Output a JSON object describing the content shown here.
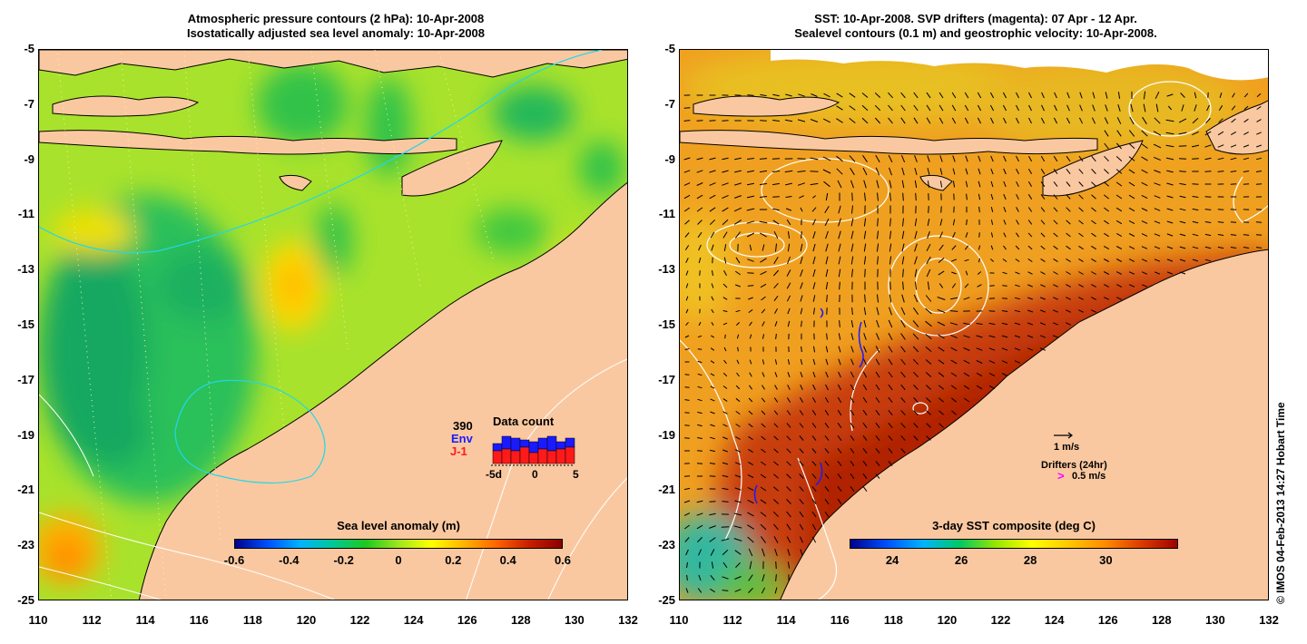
{
  "left_panel": {
    "title_line1": "Atmospheric pressure contours (2 hPa): 10-Apr-2008",
    "title_line2": "Isostatically adjusted sea level anomaly: 10-Apr-2008",
    "y_ticks": [
      "-5",
      "-7",
      "-9",
      "-11",
      "-13",
      "-15",
      "-17",
      "-19",
      "-21",
      "-23",
      "-25"
    ],
    "x_ticks": [
      "110",
      "112",
      "114",
      "116",
      "118",
      "120",
      "122",
      "124",
      "126",
      "128",
      "130",
      "132"
    ],
    "colorbar": {
      "title": "Sea level anomaly (m)",
      "ticks": [
        "-0.6",
        "-0.4",
        "-0.2",
        "0",
        "0.2",
        "0.4",
        "0.6"
      ],
      "range": [
        -0.6,
        0.6
      ]
    },
    "inset": {
      "count": "390",
      "label_env": "Env",
      "label_j1": "J-1",
      "title": "Data count",
      "x_ticks": [
        "-5d",
        "0",
        "5"
      ],
      "env_color": "#1a1aff",
      "j1_color": "#ff1a1a",
      "bars": [
        {
          "env": 0.55,
          "j1": 0.35
        },
        {
          "env": 0.75,
          "j1": 0.4
        },
        {
          "env": 0.7,
          "j1": 0.35
        },
        {
          "env": 0.65,
          "j1": 0.45
        },
        {
          "env": 0.6,
          "j1": 0.3
        },
        {
          "env": 0.7,
          "j1": 0.4
        },
        {
          "env": 0.75,
          "j1": 0.35
        },
        {
          "env": 0.6,
          "j1": 0.4
        },
        {
          "env": 0.7,
          "j1": 0.45
        }
      ]
    }
  },
  "right_panel": {
    "title_line1": "SST: 10-Apr-2008. SVP drifters (magenta): 07 Apr - 12 Apr.",
    "title_line2": "Sealevel contours (0.1 m) and geostrophic velocity: 10-Apr-2008.",
    "y_ticks": [
      "-5",
      "-7",
      "-9",
      "-11",
      "-13",
      "-15",
      "-17",
      "-19",
      "-21",
      "-23",
      "-25"
    ],
    "x_ticks": [
      "110",
      "112",
      "114",
      "116",
      "118",
      "120",
      "122",
      "124",
      "126",
      "128",
      "130",
      "132"
    ],
    "colorbar": {
      "title": "3-day SST composite (deg C)",
      "ticks": [
        "24",
        "26",
        "28",
        "30"
      ]
    },
    "velocity_scale": "1 m/s",
    "drifters_label": "Drifters (24hr)",
    "drifter_scale_symbol": ">",
    "drifter_scale": "0.5 m/s",
    "drifter_color": "#ff00ff"
  },
  "credit": "© IMOS 04-Feb-2013 14:27 Hobart Time",
  "colors": {
    "land": "#fac8a0",
    "sla_colormap": [
      "#00008c",
      "#0050ff",
      "#00b4ff",
      "#00c896",
      "#1ec81e",
      "#a0e61e",
      "#ffff00",
      "#ffb400",
      "#ff6400",
      "#c81e00",
      "#8c0000"
    ],
    "sst_colormap": [
      "#00008c",
      "#0050ff",
      "#00b4ff",
      "#00c864",
      "#96e600",
      "#ffff00",
      "#ffc800",
      "#ff8c00",
      "#dc3c00",
      "#a00000"
    ]
  }
}
